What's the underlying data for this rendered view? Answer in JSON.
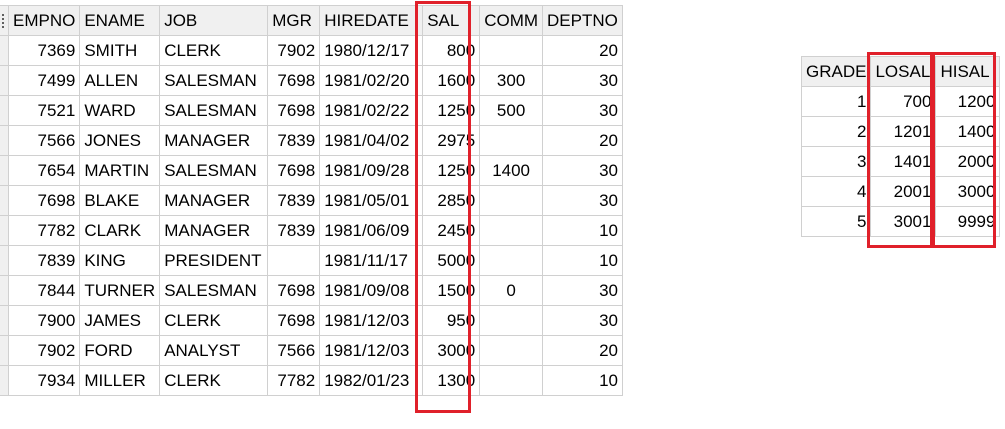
{
  "emp_table": {
    "columns": [
      "EMPNO",
      "ENAME",
      "JOB",
      "MGR",
      "HIREDATE",
      "SAL",
      "COMM",
      "DEPTNO"
    ],
    "rows": [
      [
        "7369",
        "SMITH",
        "CLERK",
        "7902",
        "1980/12/17",
        "800",
        "",
        "20"
      ],
      [
        "7499",
        "ALLEN",
        "SALESMAN",
        "7698",
        "1981/02/20",
        "1600",
        "300",
        "30"
      ],
      [
        "7521",
        "WARD",
        "SALESMAN",
        "7698",
        "1981/02/22",
        "1250",
        "500",
        "30"
      ],
      [
        "7566",
        "JONES",
        "MANAGER",
        "7839",
        "1981/04/02",
        "2975",
        "",
        "20"
      ],
      [
        "7654",
        "MARTIN",
        "SALESMAN",
        "7698",
        "1981/09/28",
        "1250",
        "1400",
        "30"
      ],
      [
        "7698",
        "BLAKE",
        "MANAGER",
        "7839",
        "1981/05/01",
        "2850",
        "",
        "30"
      ],
      [
        "7782",
        "CLARK",
        "MANAGER",
        "7839",
        "1981/06/09",
        "2450",
        "",
        "10"
      ],
      [
        "7839",
        "KING",
        "PRESIDENT",
        "",
        "1981/11/17",
        "5000",
        "",
        "10"
      ],
      [
        "7844",
        "TURNER",
        "SALESMAN",
        "7698",
        "1981/09/08",
        "1500",
        "0",
        "30"
      ],
      [
        "7900",
        "JAMES",
        "CLERK",
        "7698",
        "1981/12/03",
        "950",
        "",
        "30"
      ],
      [
        "7902",
        "FORD",
        "ANALYST",
        "7566",
        "1981/12/03",
        "3000",
        "",
        "20"
      ],
      [
        "7934",
        "MILLER",
        "CLERK",
        "7782",
        "1982/01/23",
        "1300",
        "",
        "10"
      ]
    ]
  },
  "salgrade_table": {
    "columns": [
      "GRADE",
      "LOSAL",
      "HISAL"
    ],
    "rows": [
      [
        "1",
        "700",
        "1200"
      ],
      [
        "2",
        "1201",
        "1400"
      ],
      [
        "3",
        "1401",
        "2000"
      ],
      [
        "4",
        "2001",
        "3000"
      ],
      [
        "5",
        "3001",
        "9999"
      ]
    ]
  },
  "highlight_color": "#e0202a"
}
